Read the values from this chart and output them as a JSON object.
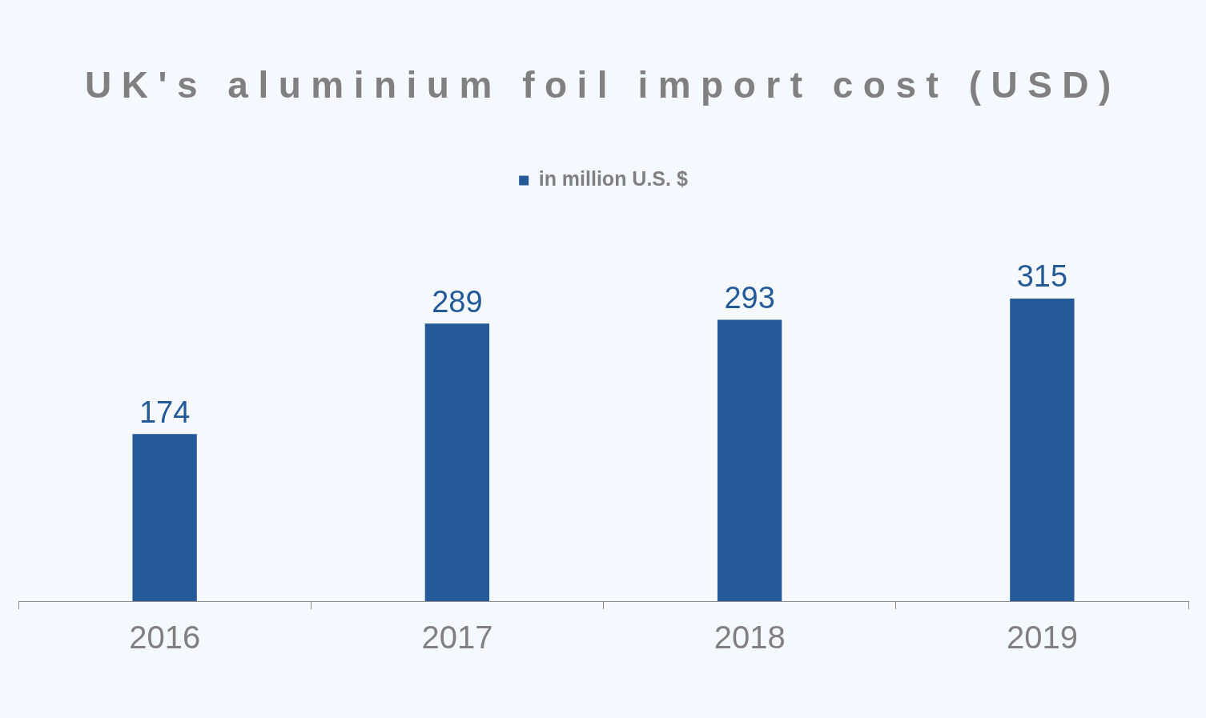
{
  "chart_data": {
    "type": "bar",
    "title": "UK's aluminium foil import cost (USD)",
    "categories": [
      "2016",
      "2017",
      "2018",
      "2019"
    ],
    "series": [
      {
        "name": "in million U.S. $",
        "color": "#255a99",
        "values": [
          174,
          289,
          293,
          315
        ]
      }
    ],
    "legend": "top",
    "data_labels": true
  }
}
